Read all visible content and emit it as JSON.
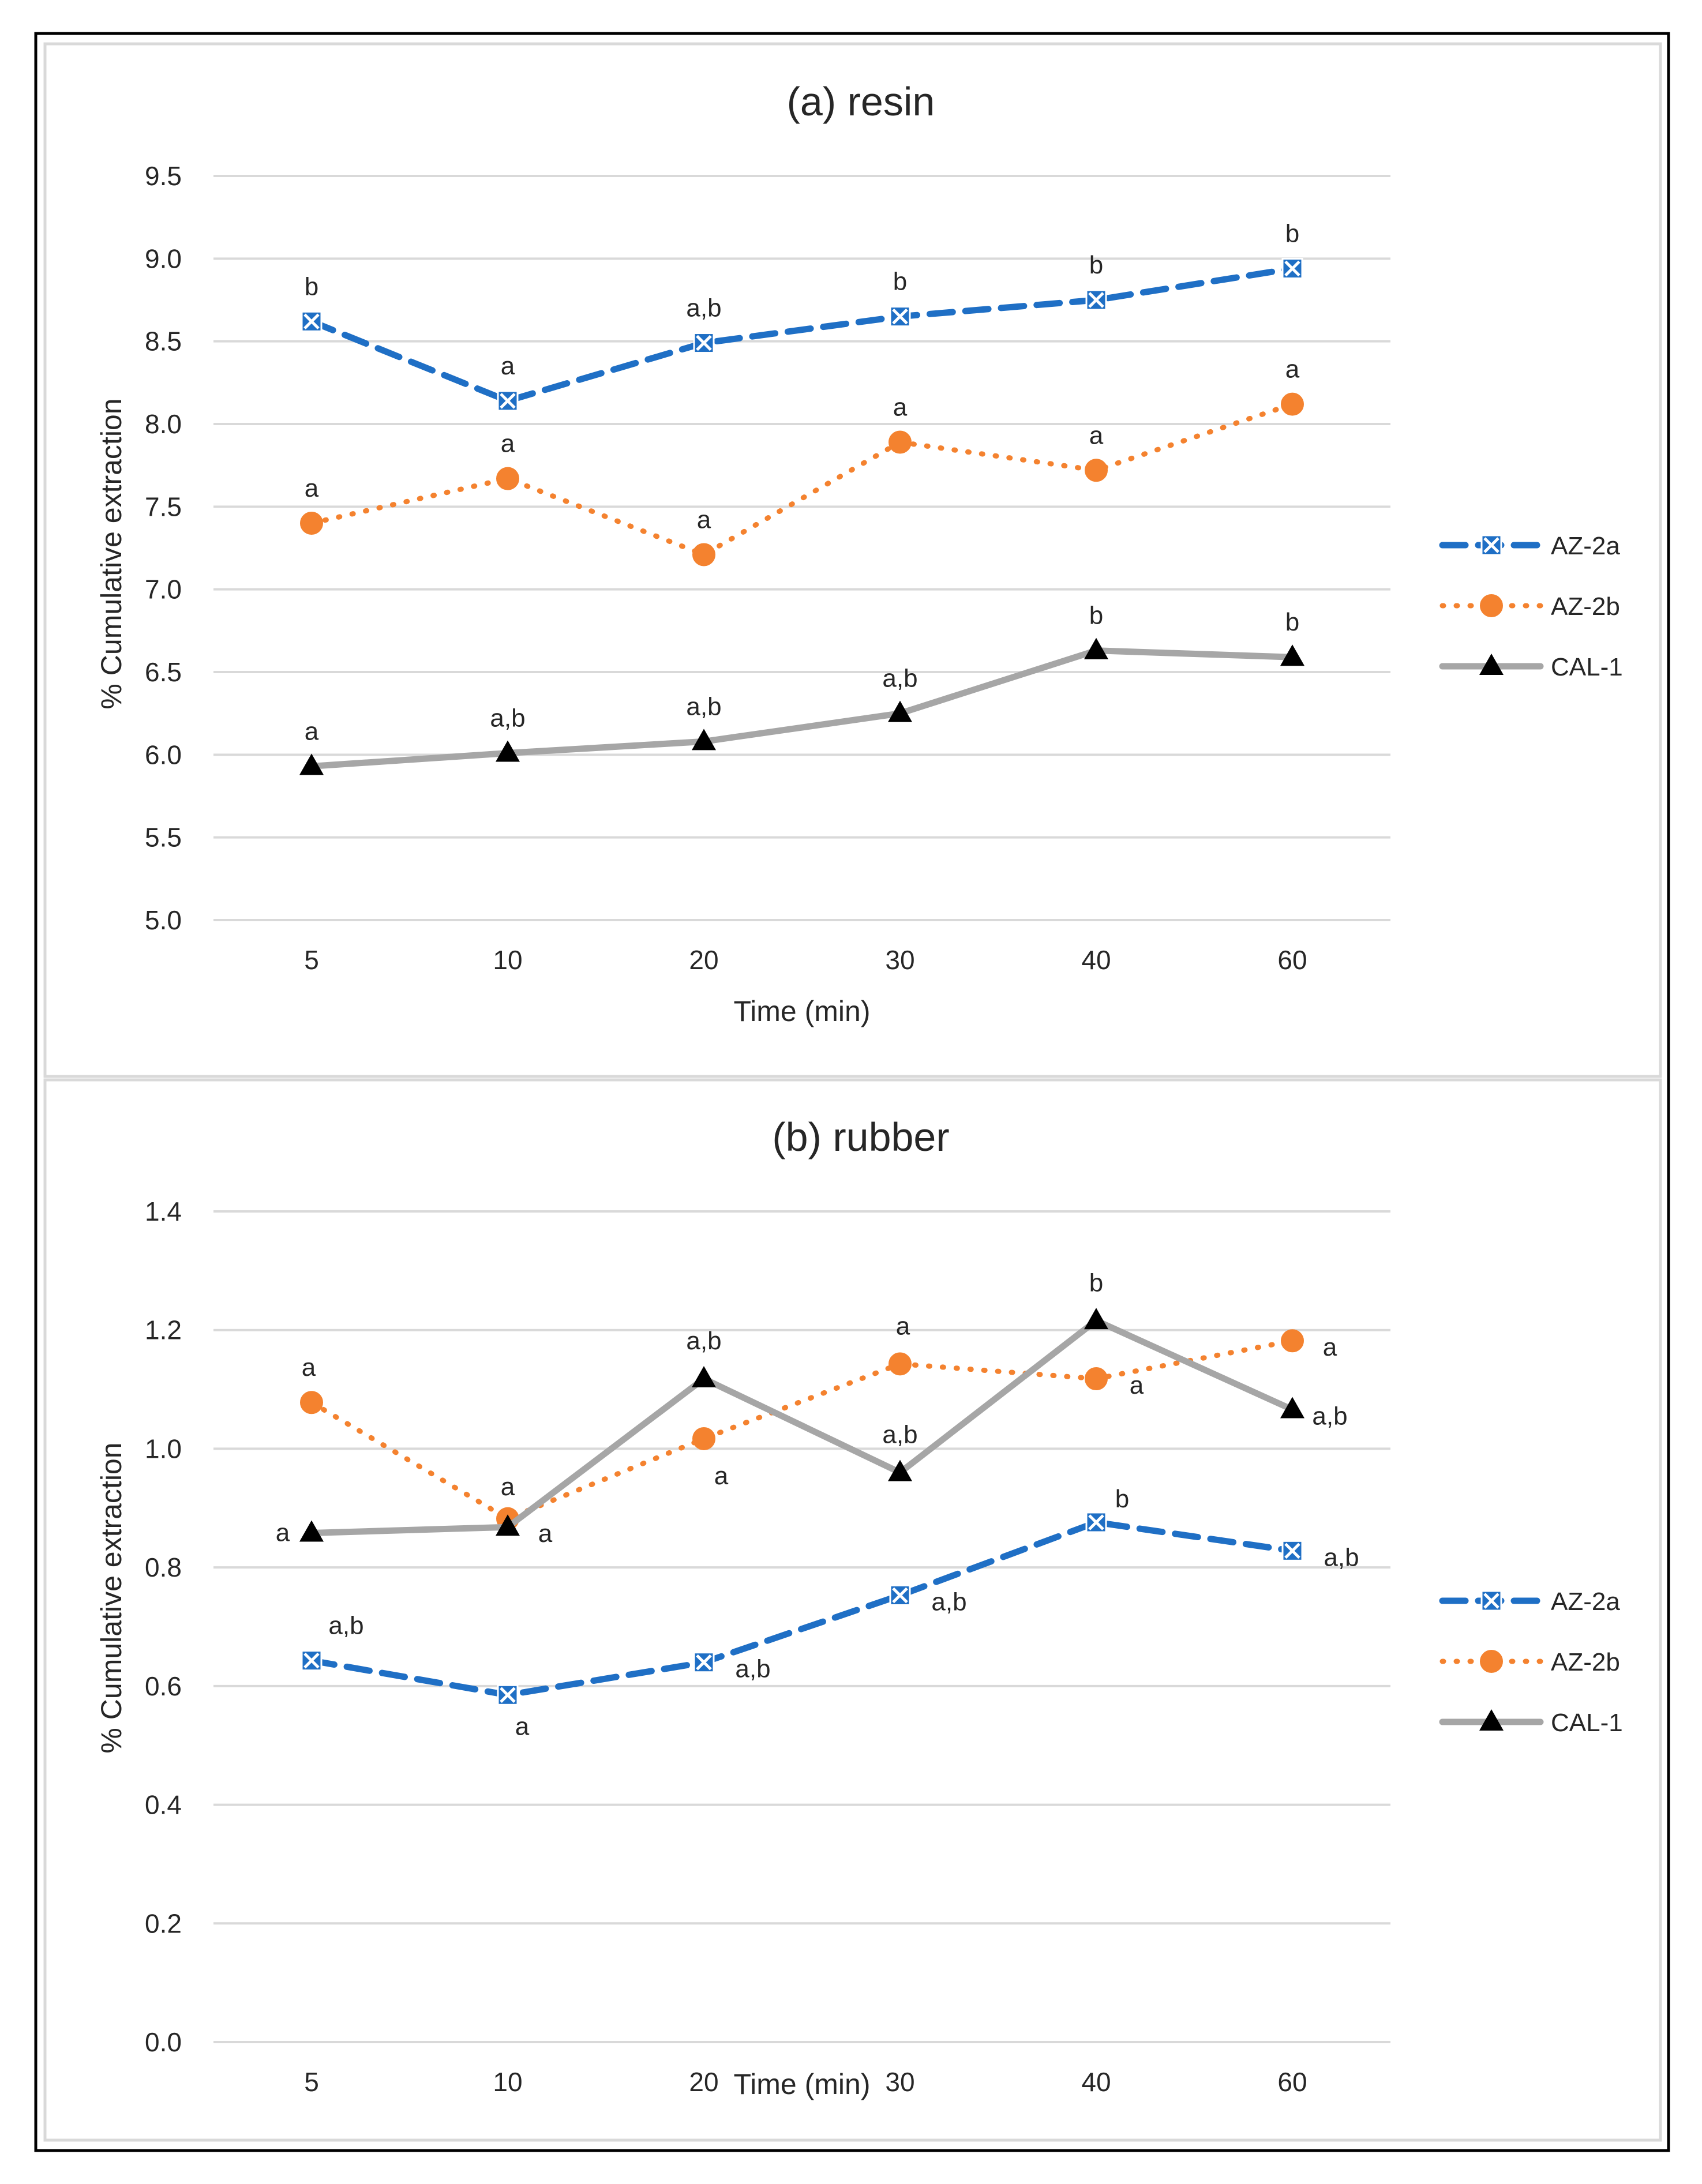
{
  "chart_data": [
    {
      "type": "line",
      "title": "(a) resin",
      "xlabel": "Time (min)",
      "ylabel": "% Cumulative extraction",
      "categories": [
        "5",
        "10",
        "20",
        "30",
        "40",
        "60"
      ],
      "ylim": [
        5.0,
        9.5
      ],
      "yticks": [
        "5.0",
        "5.5",
        "6.0",
        "6.5",
        "7.0",
        "7.5",
        "8.0",
        "8.5",
        "9.0",
        "9.5"
      ],
      "grid": true,
      "legend": "right",
      "series": [
        {
          "name": "AZ-2a",
          "color": "#1F6FC5",
          "marker": "x-square",
          "line": "dashed",
          "values": [
            8.62,
            8.14,
            8.49,
            8.65,
            8.75,
            8.94
          ],
          "labels": [
            "b",
            "a",
            "a,b",
            "b",
            "b",
            "b"
          ]
        },
        {
          "name": "AZ-2b",
          "color": "#F4822F",
          "marker": "circle",
          "line": "dotted",
          "values": [
            7.4,
            7.67,
            7.21,
            7.89,
            7.72,
            8.12
          ],
          "labels": [
            "a",
            "a",
            "a",
            "a",
            "a",
            "a"
          ]
        },
        {
          "name": "CAL-1",
          "color": "#A6A6A6",
          "marker": "triangle",
          "line": "solid",
          "values": [
            5.93,
            6.01,
            6.08,
            6.25,
            6.63,
            6.59
          ],
          "labels": [
            "a",
            "a,b",
            "a,b",
            "a,b",
            "b",
            "b"
          ]
        }
      ]
    },
    {
      "type": "line",
      "title": "(b) rubber",
      "xlabel": "Time (min)",
      "ylabel": "% Cumulative extraction",
      "categories": [
        "5",
        "10",
        "20",
        "30",
        "40",
        "60"
      ],
      "ylim": [
        0.0,
        1.4
      ],
      "yticks": [
        "0.0",
        "0.2",
        "0.4",
        "0.6",
        "0.8",
        "1.0",
        "1.2",
        "1.4"
      ],
      "grid": true,
      "legend": "right",
      "series": [
        {
          "name": "AZ-2a",
          "color": "#1F6FC5",
          "marker": "x-square",
          "line": "dashed",
          "values": [
            0.643,
            0.585,
            0.64,
            0.753,
            0.876,
            0.828
          ],
          "labels": [
            "a,b",
            "a",
            "a,b",
            "a,b",
            "b",
            "a,b"
          ]
        },
        {
          "name": "AZ-2b",
          "color": "#F4822F",
          "marker": "circle",
          "line": "dotted",
          "values": [
            1.078,
            0.882,
            1.017,
            1.143,
            1.118,
            1.182
          ],
          "labels": [
            "a",
            "a",
            "a",
            "a",
            "a",
            "a"
          ]
        },
        {
          "name": "CAL-1",
          "color": "#A6A6A6",
          "marker": "triangle",
          "line": "solid",
          "values": [
            0.858,
            0.868,
            1.118,
            0.96,
            1.216,
            1.066
          ],
          "labels": [
            "a",
            "a",
            "a,b",
            "a,b",
            "b",
            "a,b"
          ]
        }
      ]
    }
  ]
}
